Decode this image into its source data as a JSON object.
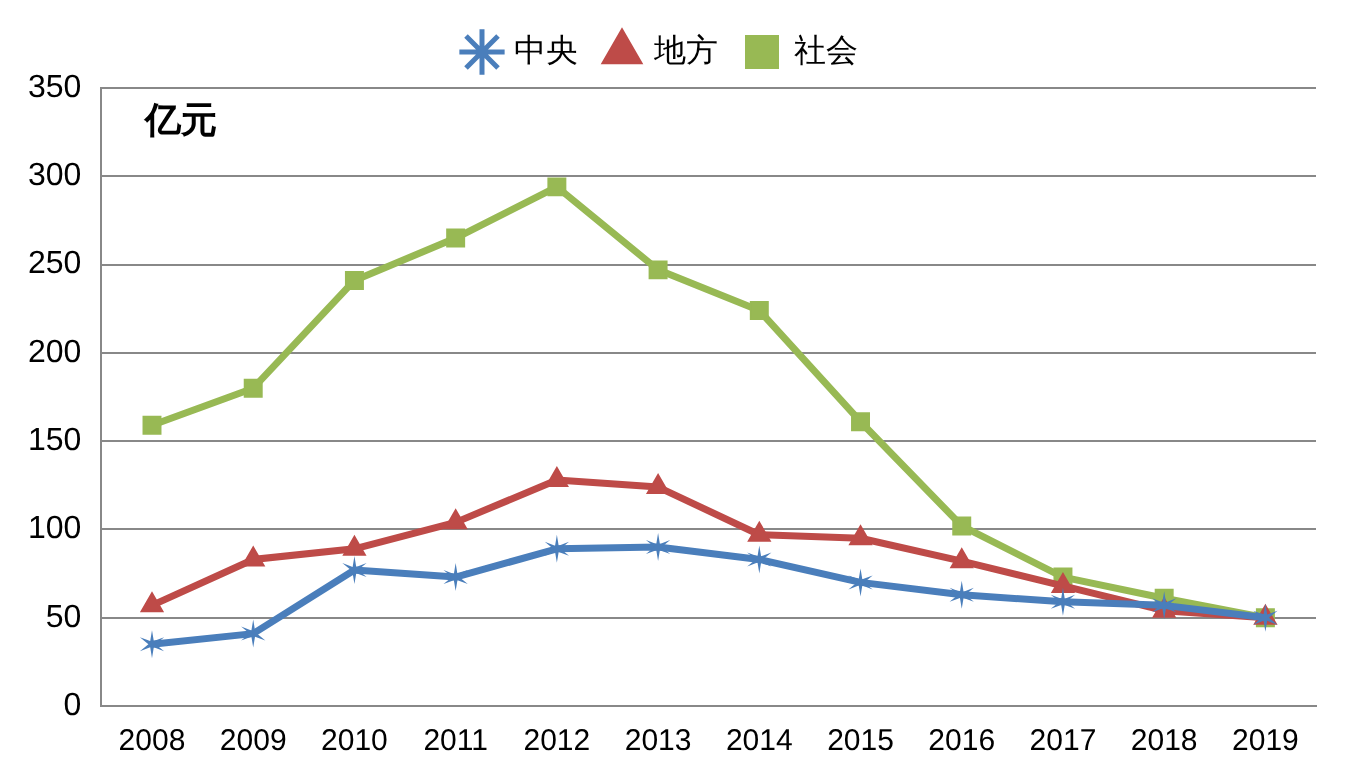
{
  "chart_data": {
    "type": "line",
    "ylabel": "亿元",
    "categories": [
      "2008",
      "2009",
      "2010",
      "2011",
      "2012",
      "2013",
      "2014",
      "2015",
      "2016",
      "2017",
      "2018",
      "2019"
    ],
    "series": [
      {
        "name": "中央",
        "color": "#4a7ebb",
        "marker": "cross",
        "values": [
          35,
          41,
          77,
          73,
          89,
          90,
          83,
          70,
          63,
          59,
          57,
          50
        ]
      },
      {
        "name": "地方",
        "color": "#be4b48",
        "marker": "triangle",
        "values": [
          57,
          83,
          89,
          104,
          128,
          124,
          97,
          95,
          82,
          68,
          54,
          50
        ]
      },
      {
        "name": "社会",
        "color": "#98b954",
        "marker": "square",
        "values": [
          159,
          180,
          241,
          265,
          294,
          247,
          224,
          161,
          102,
          73,
          61,
          50
        ]
      }
    ],
    "ylim": [
      0,
      350
    ],
    "yticks": [
      0,
      50,
      100,
      150,
      200,
      250,
      300,
      350
    ],
    "grid": "y",
    "legend": "top"
  }
}
